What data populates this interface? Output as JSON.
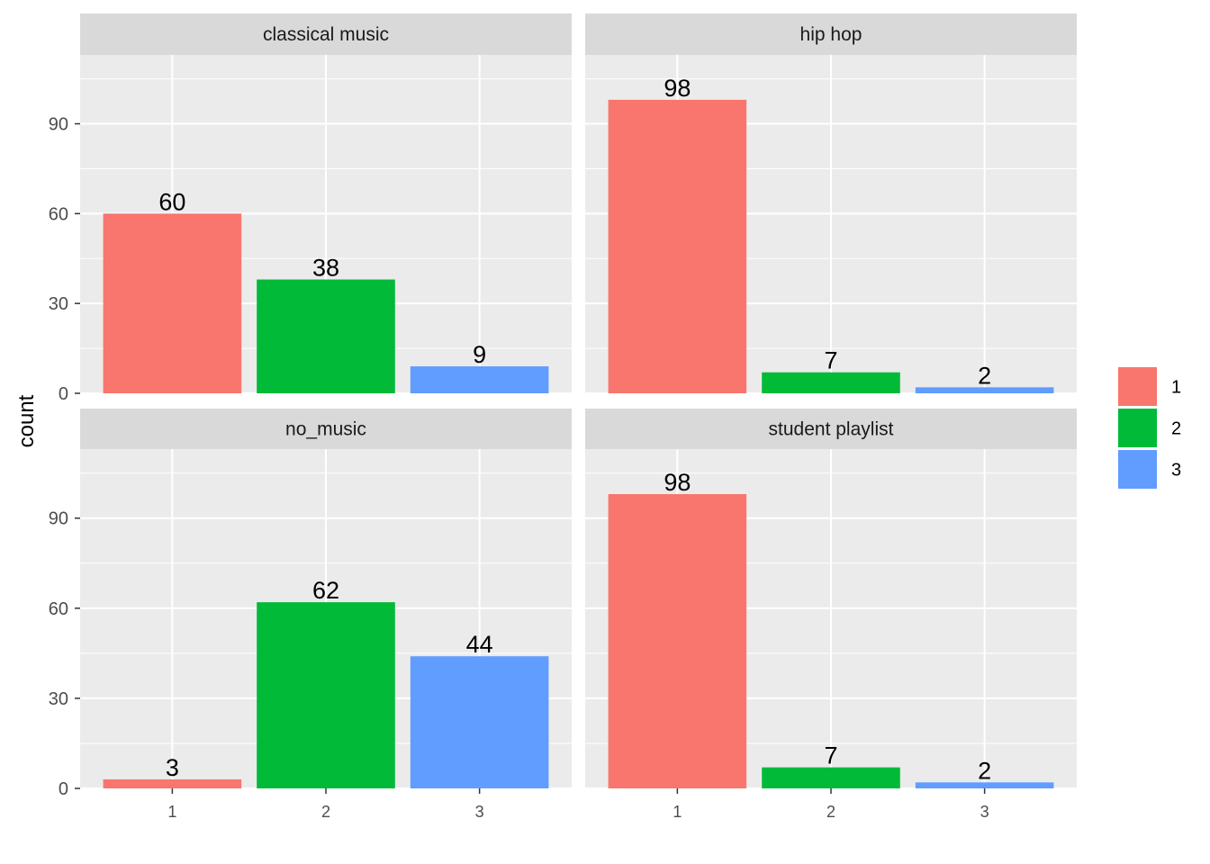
{
  "chart_data": {
    "type": "bar",
    "facets": [
      {
        "title": "classical music",
        "categories": [
          "1",
          "2",
          "3"
        ],
        "values": [
          60,
          38,
          9
        ]
      },
      {
        "title": "hip hop",
        "categories": [
          "1",
          "2",
          "3"
        ],
        "values": [
          98,
          7,
          2
        ]
      },
      {
        "title": "no_music",
        "categories": [
          "1",
          "2",
          "3"
        ],
        "values": [
          3,
          62,
          44
        ]
      },
      {
        "title": "student playlist",
        "categories": [
          "1",
          "2",
          "3"
        ],
        "values": [
          98,
          7,
          2
        ]
      }
    ],
    "ylabel": "count",
    "xlabel": "",
    "yticks": [
      0,
      30,
      60,
      90
    ],
    "ylim": [
      0,
      113
    ],
    "legend": {
      "placement": "right",
      "entries": [
        "1",
        "2",
        "3"
      ]
    },
    "colors": {
      "1": "#F8766D",
      "2": "#00BA38",
      "3": "#619CFF"
    },
    "panel_background": "#EBEBEB",
    "strip_background": "#D9D9D9",
    "grid": true
  }
}
